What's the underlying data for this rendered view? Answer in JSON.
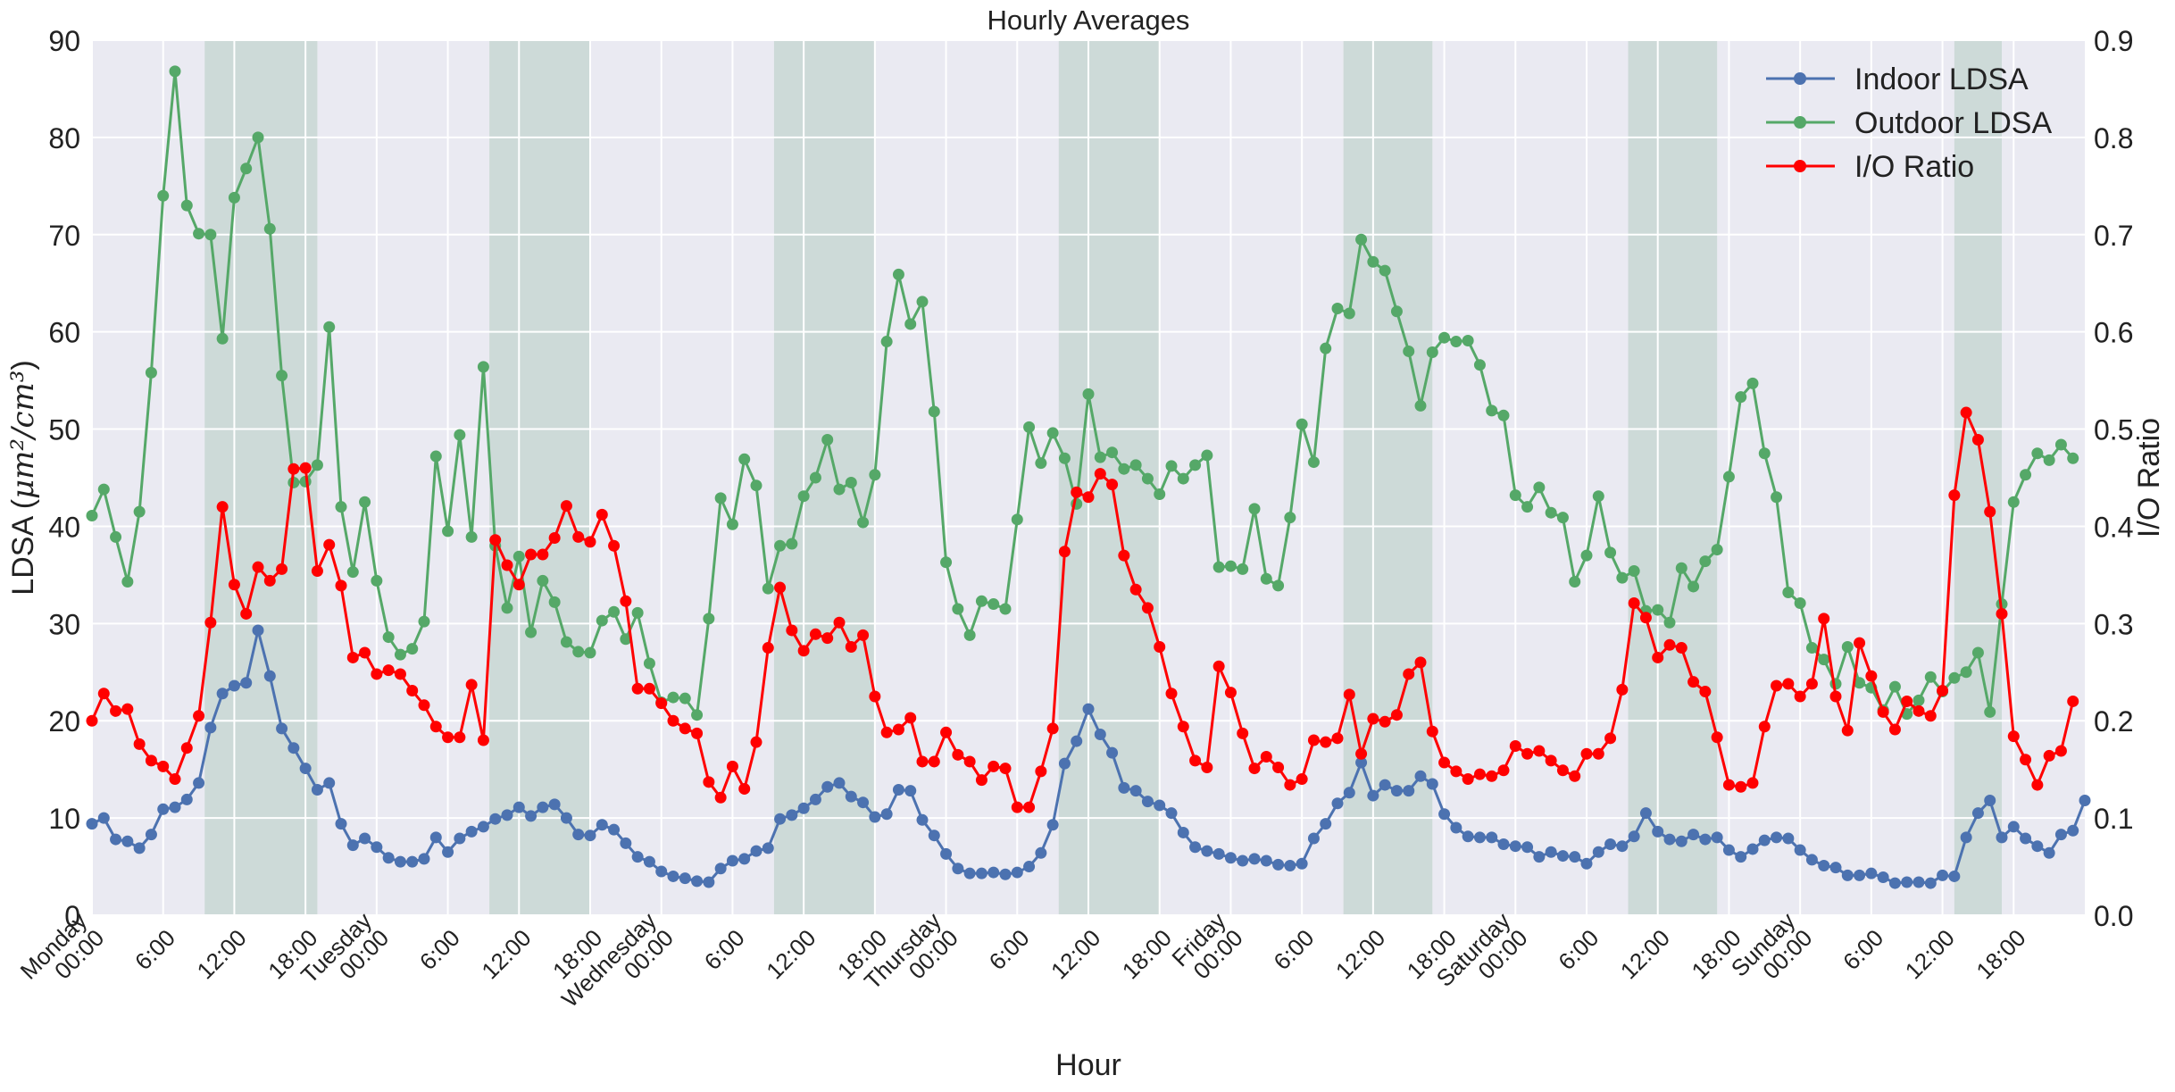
{
  "chart_data": {
    "type": "line",
    "title": "Hourly Averages",
    "xlabel": "Hour",
    "ylabel_left": "LDSA (",
    "ylabel_left_math": "μm²/cm³",
    "ylabel_left_close": ")",
    "ylabel_right": "I/O Ratio",
    "x_range": [
      0,
      168
    ],
    "ylim_left": [
      0,
      90
    ],
    "ylim_right": [
      0,
      0.9
    ],
    "yticks_left": [
      "0",
      "10",
      "20",
      "30",
      "40",
      "50",
      "60",
      "70",
      "80",
      "90"
    ],
    "yticks_right": [
      "0.0",
      "0.1",
      "0.2",
      "0.3",
      "0.4",
      "0.5",
      "0.6",
      "0.7",
      "0.8",
      "0.9"
    ],
    "xticks": [
      {
        "hour": 0,
        "lines": [
          "Monday",
          "00:00"
        ]
      },
      {
        "hour": 6,
        "lines": [
          "6:00"
        ]
      },
      {
        "hour": 12,
        "lines": [
          "12:00"
        ]
      },
      {
        "hour": 18,
        "lines": [
          "18:00"
        ]
      },
      {
        "hour": 24,
        "lines": [
          "Tuesday",
          "00:00"
        ]
      },
      {
        "hour": 30,
        "lines": [
          "6:00"
        ]
      },
      {
        "hour": 36,
        "lines": [
          "12:00"
        ]
      },
      {
        "hour": 42,
        "lines": [
          "18:00"
        ]
      },
      {
        "hour": 48,
        "lines": [
          "Wednesday",
          "00:00"
        ]
      },
      {
        "hour": 54,
        "lines": [
          "6:00"
        ]
      },
      {
        "hour": 60,
        "lines": [
          "12:00"
        ]
      },
      {
        "hour": 66,
        "lines": [
          "18:00"
        ]
      },
      {
        "hour": 72,
        "lines": [
          "Thursday",
          "00:00"
        ]
      },
      {
        "hour": 78,
        "lines": [
          "6:00"
        ]
      },
      {
        "hour": 84,
        "lines": [
          "12:00"
        ]
      },
      {
        "hour": 90,
        "lines": [
          "18:00"
        ]
      },
      {
        "hour": 96,
        "lines": [
          "Friday",
          "00:00"
        ]
      },
      {
        "hour": 102,
        "lines": [
          "6:00"
        ]
      },
      {
        "hour": 108,
        "lines": [
          "12:00"
        ]
      },
      {
        "hour": 114,
        "lines": [
          "18:00"
        ]
      },
      {
        "hour": 120,
        "lines": [
          "Saturday",
          "00:00"
        ]
      },
      {
        "hour": 126,
        "lines": [
          "6:00"
        ]
      },
      {
        "hour": 132,
        "lines": [
          "12:00"
        ]
      },
      {
        "hour": 138,
        "lines": [
          "18:00"
        ]
      },
      {
        "hour": 144,
        "lines": [
          "Sunday",
          "00:00"
        ]
      },
      {
        "hour": 150,
        "lines": [
          "6:00"
        ]
      },
      {
        "hour": 156,
        "lines": [
          "12:00"
        ]
      },
      {
        "hour": 162,
        "lines": [
          "18:00"
        ]
      }
    ],
    "shaded_periods": [
      [
        9.5,
        19
      ],
      [
        33.5,
        42
      ],
      [
        57.5,
        66
      ],
      [
        81.5,
        90
      ],
      [
        105.5,
        113
      ],
      [
        129.5,
        137
      ],
      [
        157,
        161
      ]
    ],
    "grid": true,
    "legend_position": "top-right",
    "series": [
      {
        "name": "Indoor LDSA",
        "axis": "left",
        "color": "#4c72b0",
        "values": [
          9.4,
          10.0,
          7.8,
          7.6,
          6.9,
          8.3,
          10.9,
          11.1,
          11.9,
          13.6,
          19.3,
          22.8,
          23.6,
          23.9,
          29.3,
          24.6,
          19.2,
          17.2,
          15.1,
          12.9,
          13.6,
          9.4,
          7.2,
          7.9,
          7.0,
          5.9,
          5.5,
          5.5,
          5.8,
          8.0,
          6.5,
          7.9,
          8.6,
          9.1,
          9.9,
          10.3,
          11.1,
          10.2,
          11.1,
          11.4,
          10.0,
          8.3,
          8.2,
          9.3,
          8.8,
          7.4,
          6.0,
          5.5,
          4.5,
          4.0,
          3.8,
          3.5,
          3.4,
          4.8,
          5.6,
          5.8,
          6.6,
          6.9,
          9.9,
          10.3,
          11.0,
          11.9,
          13.2,
          13.6,
          12.2,
          11.6,
          10.1,
          10.4,
          12.9,
          12.8,
          9.8,
          8.2,
          6.3,
          4.8,
          4.3,
          4.3,
          4.4,
          4.2,
          4.4,
          5.0,
          6.4,
          9.3,
          15.6,
          17.9,
          21.2,
          18.6,
          16.7,
          13.1,
          12.8,
          11.7,
          11.3,
          10.5,
          8.5,
          7.0,
          6.6,
          6.3,
          5.9,
          5.6,
          5.8,
          5.6,
          5.2,
          5.1,
          5.3,
          7.9,
          9.4,
          11.5,
          12.6,
          15.7,
          12.3,
          13.4,
          12.8,
          12.8,
          14.3,
          13.5,
          10.4,
          9.0,
          8.1,
          8.0,
          8.0,
          7.3,
          7.1,
          7.0,
          6.0,
          6.5,
          6.1,
          6.0,
          5.3,
          6.5,
          7.3,
          7.1,
          8.1,
          10.5,
          8.6,
          7.8,
          7.6,
          8.3,
          7.8,
          8.0,
          6.7,
          6.0,
          6.8,
          7.7,
          8.0,
          7.9,
          6.7,
          5.7,
          5.1,
          4.9,
          4.1,
          4.1,
          4.3,
          3.9,
          3.3,
          3.4,
          3.4,
          3.3,
          4.1,
          4.0,
          8.0,
          10.5,
          11.8,
          8.0,
          9.1,
          7.9,
          7.1,
          6.4,
          8.3,
          8.7,
          11.8
        ]
      },
      {
        "name": "Outdoor LDSA",
        "axis": "left",
        "color": "#55a868",
        "values": [
          41.1,
          43.8,
          38.9,
          34.3,
          41.5,
          55.8,
          74.0,
          86.8,
          73.0,
          70.1,
          70.0,
          59.3,
          73.8,
          76.8,
          80.0,
          70.6,
          55.5,
          44.5,
          44.6,
          46.3,
          60.5,
          42.0,
          35.3,
          42.5,
          34.4,
          28.6,
          26.8,
          27.4,
          30.2,
          47.2,
          39.5,
          49.4,
          38.9,
          56.4,
          38.0,
          31.6,
          36.9,
          29.1,
          34.4,
          32.2,
          28.1,
          27.1,
          27.0,
          30.3,
          31.2,
          28.4,
          31.1,
          25.9,
          21.9,
          22.4,
          22.3,
          20.6,
          30.5,
          42.9,
          40.2,
          46.9,
          44.2,
          33.6,
          38.0,
          38.2,
          43.1,
          45.0,
          48.9,
          43.8,
          44.5,
          40.4,
          45.3,
          59.0,
          65.9,
          60.8,
          63.1,
          51.8,
          36.3,
          31.5,
          28.8,
          32.3,
          32.0,
          31.5,
          40.7,
          50.2,
          46.5,
          49.6,
          47.0,
          42.3,
          53.6,
          47.1,
          47.6,
          45.9,
          46.3,
          44.9,
          43.3,
          46.2,
          44.9,
          46.3,
          47.3,
          35.8,
          35.9,
          35.6,
          41.8,
          34.6,
          33.9,
          40.9,
          50.5,
          46.6,
          58.3,
          62.4,
          61.9,
          69.5,
          67.2,
          66.3,
          62.1,
          58.0,
          52.4,
          57.9,
          59.4,
          59.0,
          59.1,
          56.6,
          51.9,
          51.4,
          43.2,
          42.0,
          44.0,
          41.4,
          40.9,
          34.3,
          37.0,
          43.1,
          37.3,
          34.7,
          35.4,
          31.3,
          31.4,
          30.1,
          35.7,
          33.8,
          36.4,
          37.6,
          45.1,
          53.3,
          54.7,
          47.5,
          43.0,
          33.2,
          32.1,
          27.5,
          26.3,
          23.8,
          27.6,
          23.9,
          23.4,
          21.1,
          23.5,
          20.7,
          22.1,
          24.5,
          23.0,
          24.4,
          25.0,
          27.0,
          20.9,
          32.0,
          42.5,
          45.3,
          47.5,
          46.8,
          48.4,
          47.0
        ]
      },
      {
        "name": "I/O Ratio",
        "axis": "right",
        "color": "#ff0000",
        "values": [
          0.2,
          0.228,
          0.21,
          0.212,
          0.176,
          0.159,
          0.153,
          0.14,
          0.172,
          0.205,
          0.301,
          0.42,
          0.34,
          0.31,
          0.358,
          0.344,
          0.356,
          0.459,
          0.46,
          0.354,
          0.381,
          0.339,
          0.265,
          0.27,
          0.248,
          0.252,
          0.248,
          0.231,
          0.216,
          0.194,
          0.183,
          0.183,
          0.237,
          0.18,
          0.386,
          0.36,
          0.34,
          0.371,
          0.371,
          0.388,
          0.421,
          0.389,
          0.384,
          0.412,
          0.38,
          0.323,
          0.233,
          0.233,
          0.218,
          0.2,
          0.192,
          0.187,
          0.137,
          0.121,
          0.153,
          0.13,
          0.178,
          0.275,
          0.337,
          0.293,
          0.272,
          0.289,
          0.285,
          0.301,
          0.276,
          0.288,
          0.225,
          0.188,
          0.191,
          0.203,
          0.158,
          0.158,
          0.188,
          0.165,
          0.158,
          0.139,
          0.153,
          0.151,
          0.111,
          0.111,
          0.148,
          0.192,
          0.374,
          0.435,
          0.43,
          0.454,
          0.443,
          0.37,
          0.335,
          0.316,
          0.276,
          0.228,
          0.194,
          0.159,
          0.152,
          0.256,
          0.229,
          0.187,
          0.151,
          0.163,
          0.152,
          0.134,
          0.14,
          0.18,
          0.178,
          0.182,
          0.227,
          0.166,
          0.202,
          0.199,
          0.206,
          0.248,
          0.26,
          0.189,
          0.157,
          0.148,
          0.14,
          0.145,
          0.143,
          0.149,
          0.174,
          0.166,
          0.169,
          0.159,
          0.149,
          0.143,
          0.166,
          0.166,
          0.182,
          0.232,
          0.321,
          0.306,
          0.265,
          0.278,
          0.275,
          0.24,
          0.23,
          0.183,
          0.134,
          0.132,
          0.136,
          0.194,
          0.236,
          0.238,
          0.225,
          0.238,
          0.305,
          0.225,
          0.19,
          0.28,
          0.246,
          0.209,
          0.191,
          0.22,
          0.21,
          0.205,
          0.231,
          0.432,
          0.517,
          0.489,
          0.415,
          0.31,
          0.184,
          0.16,
          0.134,
          0.164,
          0.169,
          0.22
        ]
      }
    ]
  }
}
